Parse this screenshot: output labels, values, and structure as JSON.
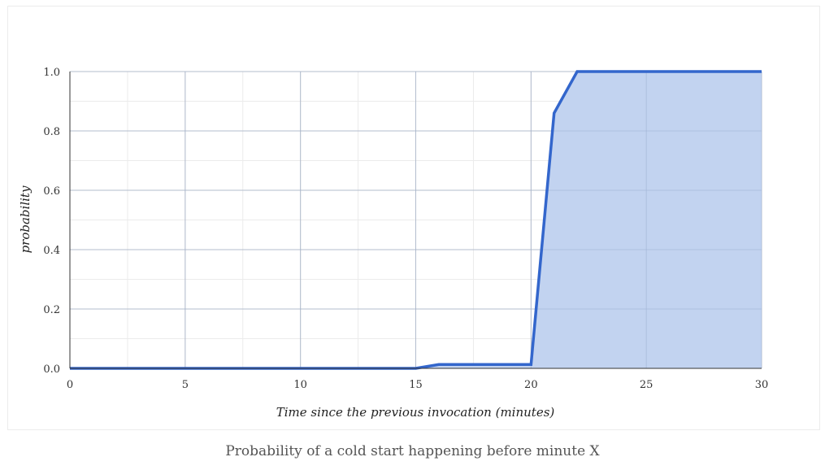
{
  "caption": "Probability of a cold start happening before minute X",
  "chart_data": {
    "type": "area",
    "title": "",
    "xlabel": "Time since the previous invocation (minutes)",
    "ylabel": "probability",
    "xlim": [
      0,
      30
    ],
    "ylim": [
      0,
      1
    ],
    "x_ticks": [
      "0",
      "5",
      "10",
      "15",
      "20",
      "25",
      "30"
    ],
    "y_ticks": [
      "0.0",
      "0.2",
      "0.4",
      "0.6",
      "0.8",
      "1.0"
    ],
    "grid": true,
    "legend": "none",
    "series": [
      {
        "x": [
          0,
          15,
          16,
          20,
          21,
          22,
          30
        ],
        "y": [
          0,
          0,
          0.013,
          0.013,
          0.86,
          1.0,
          1.0
        ]
      }
    ],
    "colors": {
      "line": "#3366cc",
      "fill": "#c2d3f0",
      "grid_major": "#cccccc",
      "grid_minor": "#ebebeb",
      "axis": "#333333"
    }
  }
}
